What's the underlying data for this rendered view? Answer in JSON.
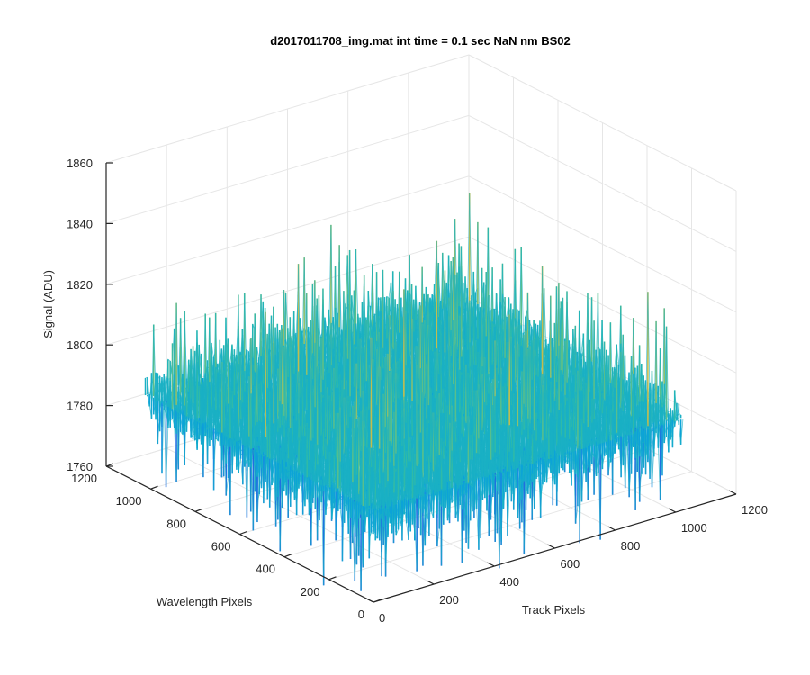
{
  "chart_data": {
    "type": "surface",
    "title": "d2017011708_img.mat int time = 0.1 sec  NaN nm BS02",
    "xlabel": "Track Pixels",
    "ylabel": "Wavelength Pixels",
    "zlabel": "Signal (ADU)",
    "xlim": [
      0,
      1200
    ],
    "ylim": [
      0,
      1200
    ],
    "zlim": [
      1760,
      1860
    ],
    "x_ticks": [
      "0",
      "200",
      "400",
      "600",
      "800",
      "1000",
      "1200"
    ],
    "y_ticks": [
      "0",
      "200",
      "400",
      "600",
      "800",
      "1000",
      "1200"
    ],
    "z_ticks": [
      "1760",
      "1780",
      "1800",
      "1820",
      "1840",
      "1860"
    ],
    "data_extent": {
      "x": [
        0,
        1024
      ],
      "y": [
        0,
        1024
      ]
    },
    "signal_mean": 1790,
    "signal_range": [
      1755,
      1855
    ],
    "grid": true,
    "colormap": "parula"
  }
}
